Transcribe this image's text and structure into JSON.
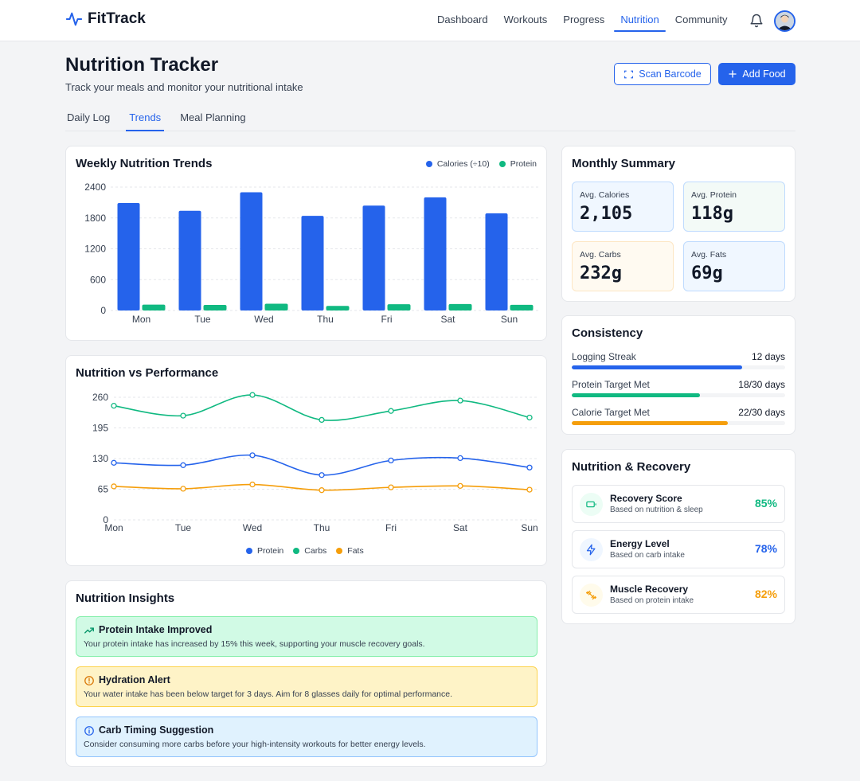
{
  "app": {
    "name": "FitTrack"
  },
  "nav": {
    "items": [
      "Dashboard",
      "Workouts",
      "Progress",
      "Nutrition",
      "Community"
    ],
    "active": "Nutrition"
  },
  "page": {
    "title": "Nutrition Tracker",
    "subtitle": "Track your meals and monitor your nutritional intake"
  },
  "actions": {
    "scan_label": "Scan Barcode",
    "add_label": "Add Food"
  },
  "tabs": {
    "items": [
      "Daily Log",
      "Trends",
      "Meal Planning"
    ],
    "active": "Trends"
  },
  "weekly": {
    "title": "Weekly Nutrition Trends",
    "legend": [
      "Calories (÷10)",
      "Protein"
    ]
  },
  "performance": {
    "title": "Nutrition vs Performance",
    "legend": [
      "Protein",
      "Carbs",
      "Fats"
    ]
  },
  "chart_data": [
    {
      "type": "bar",
      "title": "Weekly Nutrition Trends",
      "categories": [
        "Mon",
        "Tue",
        "Wed",
        "Thu",
        "Fri",
        "Sat",
        "Sun"
      ],
      "series": [
        {
          "name": "Calories (÷10)",
          "values": [
            2090,
            1940,
            2300,
            1840,
            2040,
            2200,
            1890
          ],
          "color": "#2563eb"
        },
        {
          "name": "Protein",
          "values": [
            115,
            108,
            132,
            90,
            122,
            125,
            110
          ],
          "color": "#10b981"
        }
      ],
      "yticks": [
        "2400",
        "1800",
        "1200",
        "600",
        "0"
      ],
      "ylim": [
        0,
        2400
      ],
      "grid": true,
      "legend": "top-right"
    },
    {
      "type": "line",
      "title": "Nutrition vs Performance",
      "categories": [
        "Mon",
        "Tue",
        "Wed",
        "Thu",
        "Fri",
        "Sat",
        "Sun"
      ],
      "series": [
        {
          "name": "Protein",
          "values": [
            121,
            116,
            137,
            95,
            126,
            131,
            111
          ],
          "color": "#2563eb"
        },
        {
          "name": "Carbs",
          "values": [
            242,
            221,
            265,
            212,
            231,
            253,
            217
          ],
          "color": "#10b981"
        },
        {
          "name": "Fats",
          "values": [
            71,
            66,
            75,
            63,
            69,
            72,
            64
          ],
          "color": "#f59e0b"
        }
      ],
      "yticks": [
        "260",
        "195",
        "130",
        "65",
        "0"
      ],
      "ylim": [
        0,
        260
      ],
      "grid": true,
      "legend": "bottom-center"
    }
  ],
  "summary": {
    "title": "Monthly Summary",
    "tiles": [
      {
        "label": "Avg. Calories",
        "value": "2,105"
      },
      {
        "label": "Avg. Protein",
        "value": "118g"
      },
      {
        "label": "Avg. Carbs",
        "value": "232g"
      },
      {
        "label": "Avg. Fats",
        "value": "69g"
      }
    ],
    "colors": {
      "blue_bg": "#f0f7ff",
      "blue_border": "#bfdbfe",
      "green_bg": "#f3faf7",
      "green_border": "#a7f3d0",
      "amber_bg": "#fffaf1",
      "amber_border": "#fde68a"
    }
  },
  "consistency": {
    "title": "Consistency",
    "rows": [
      {
        "label": "Logging Streak",
        "value": "12 days",
        "fraction": 0.8,
        "color": "#2563eb"
      },
      {
        "label": "Protein Target Met",
        "value": "18/30 days",
        "fraction": 0.6,
        "color": "#10b981"
      },
      {
        "label": "Calorie Target Met",
        "value": "22/30 days",
        "fraction": 0.733,
        "color": "#f59e0b"
      }
    ]
  },
  "recovery": {
    "title": "Nutrition & Recovery",
    "items": [
      {
        "title": "Recovery Score",
        "subtitle": "Based on nutrition & sleep",
        "value": "85%",
        "color": "#10b981",
        "icon": "battery-icon"
      },
      {
        "title": "Energy Level",
        "subtitle": "Based on carb intake",
        "value": "78%",
        "color": "#2563eb",
        "icon": "lightning-icon"
      },
      {
        "title": "Muscle Recovery",
        "subtitle": "Based on protein intake",
        "value": "82%",
        "color": "#f59e0b",
        "icon": "dumbbell-icon"
      }
    ]
  },
  "insights": {
    "title": "Nutrition Insights",
    "items": [
      {
        "title": "Protein Intake Improved",
        "text": "Your protein intake has increased by 15% this week, supporting your muscle recovery goals.",
        "icon": "trending-up-icon",
        "bg": "#d1fae5",
        "border": "#86efac"
      },
      {
        "title": "Hydration Alert",
        "text": "Your water intake has been below target for 3 days. Aim for 8 glasses daily for optimal performance.",
        "icon": "alert-circle-icon",
        "bg": "#fef3c7",
        "border": "#fcd34d"
      },
      {
        "title": "Carb Timing Suggestion",
        "text": "Consider consuming more carbs before your high-intensity workouts for better energy levels.",
        "icon": "info-icon",
        "bg": "#e0f2fe",
        "border": "#93c5fd"
      }
    ]
  }
}
